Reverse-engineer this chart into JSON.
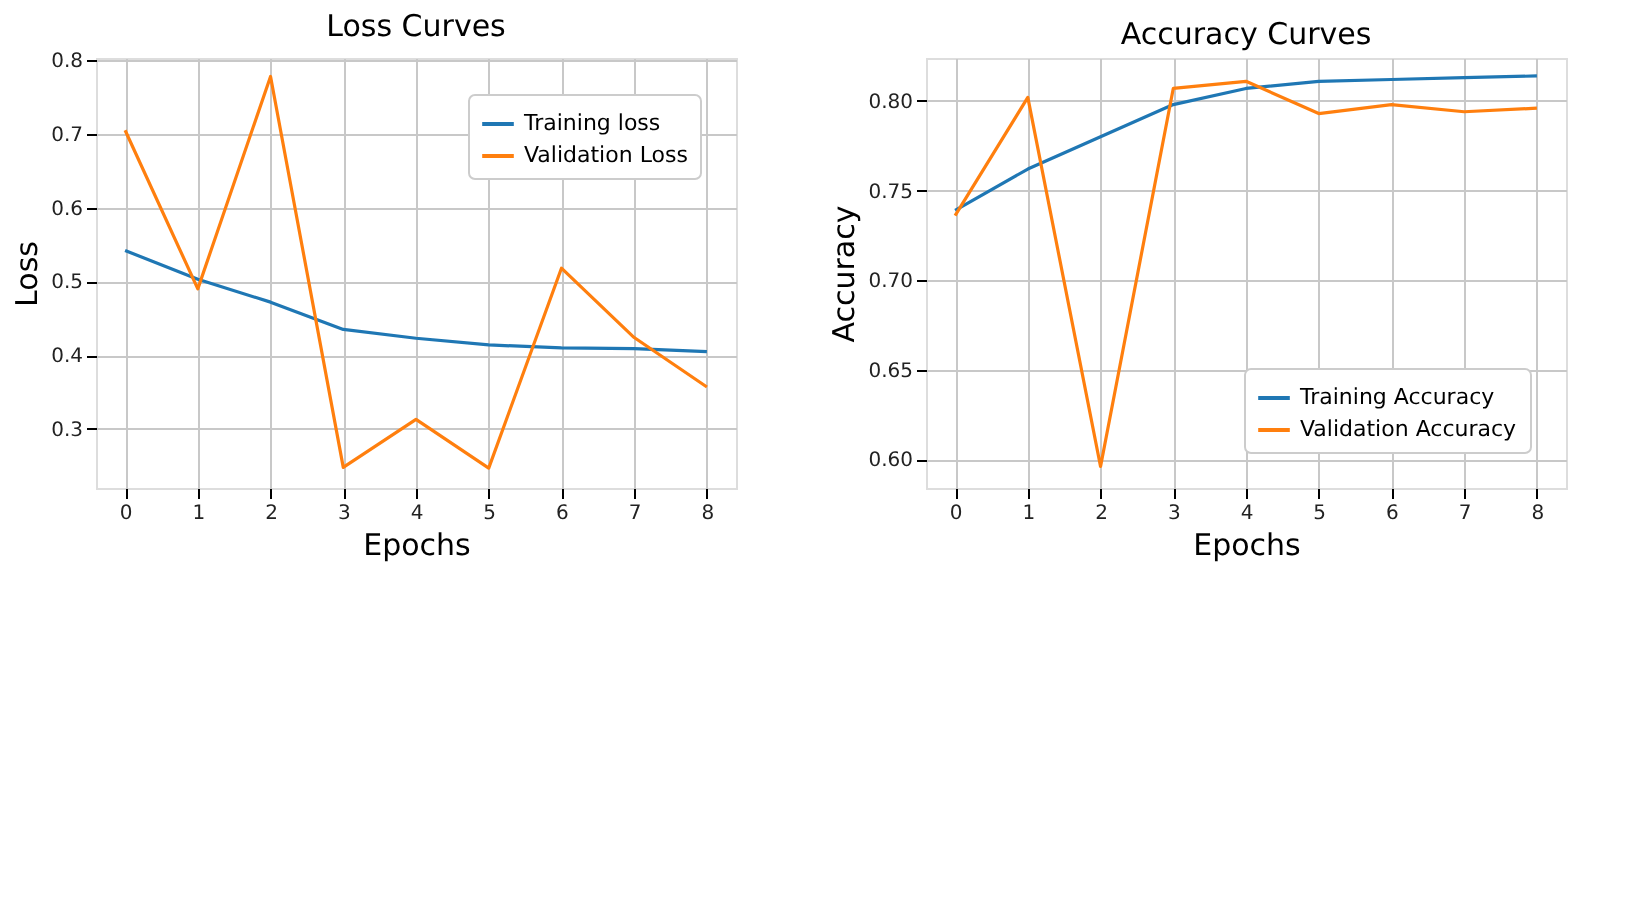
{
  "chart_data": [
    {
      "type": "line",
      "title": "Loss Curves",
      "xlabel": "Epochs",
      "ylabel": "Loss",
      "x": [
        0,
        1,
        2,
        3,
        4,
        5,
        6,
        7,
        8
      ],
      "series": [
        {
          "name": "Training loss",
          "color": "#1f77b4",
          "values": [
            0.542,
            0.503,
            0.472,
            0.435,
            0.423,
            0.414,
            0.41,
            0.409,
            0.405
          ]
        },
        {
          "name": "Validation Loss",
          "color": "#ff7f0e",
          "values": [
            0.705,
            0.49,
            0.778,
            0.248,
            0.313,
            0.247,
            0.518,
            0.424,
            0.357
          ]
        }
      ],
      "xlim": [
        -0.4,
        8.4
      ],
      "xticks": [
        0,
        1,
        2,
        3,
        4,
        5,
        6,
        7,
        8
      ],
      "ylim": [
        0.22,
        0.803
      ],
      "yticks": [
        0.3,
        0.4,
        0.5,
        0.6,
        0.7,
        0.8
      ],
      "grid": true,
      "legend": "top right"
    },
    {
      "type": "line",
      "title": "Accuracy Curves",
      "xlabel": "Epochs",
      "ylabel": "Accuracy",
      "x": [
        0,
        1,
        2,
        3,
        4,
        5,
        6,
        7,
        8
      ],
      "series": [
        {
          "name": "Training Accuracy",
          "color": "#1f77b4",
          "values": [
            0.739,
            0.762,
            0.78,
            0.798,
            0.807,
            0.811,
            0.812,
            0.813,
            0.814
          ]
        },
        {
          "name": "Validation Accuracy",
          "color": "#ff7f0e",
          "values": [
            0.736,
            0.802,
            0.596,
            0.807,
            0.811,
            0.793,
            0.798,
            0.794,
            0.796
          ]
        }
      ],
      "xlim": [
        -0.4,
        8.4
      ],
      "xticks": [
        0,
        1,
        2,
        3,
        4,
        5,
        6,
        7,
        8
      ],
      "ylim": [
        0.584,
        0.824
      ],
      "yticks": [
        {
          "value": 0.6,
          "label": "0.60"
        },
        {
          "value": 0.65,
          "label": "0.65"
        },
        {
          "value": 0.7,
          "label": "0.70"
        },
        {
          "value": 0.75,
          "label": "0.75"
        },
        {
          "value": 0.8,
          "label": "0.80"
        }
      ],
      "grid": true,
      "legend": "bottom right"
    }
  ]
}
